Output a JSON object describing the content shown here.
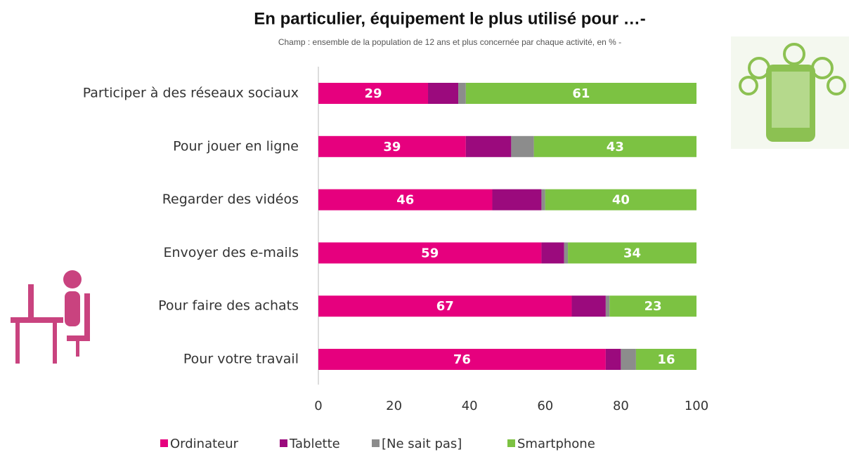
{
  "chart_data": {
    "type": "stacked-bar-horizontal",
    "title": "En particulier, équipement le plus utilisé pour …-",
    "subtitle": "Champ : ensemble de la population de 12 ans et plus concernée par chaque activité, en % -",
    "categories": [
      "Participer à des réseaux sociaux",
      "Pour jouer en ligne",
      "Regarder des vidéos",
      "Envoyer des e-mails",
      "Pour faire des achats",
      "Pour votre travail"
    ],
    "series": [
      {
        "name": "Ordinateur",
        "color": "#e6007e",
        "labels": true,
        "values": [
          29,
          39,
          46,
          59,
          67,
          76
        ]
      },
      {
        "name": "Tablette",
        "color": "#9b0a7d",
        "labels": false,
        "values": [
          8,
          12,
          13,
          6,
          9,
          4
        ]
      },
      {
        "name": "[Ne sait pas]",
        "color": "#8c8c8c",
        "labels": false,
        "values": [
          2,
          6,
          1,
          1,
          1,
          4
        ]
      },
      {
        "name": "Smartphone",
        "color": "#7cc242",
        "labels": true,
        "values": [
          61,
          43,
          40,
          34,
          23,
          16
        ]
      }
    ],
    "xlim": [
      0,
      100
    ],
    "xticks": [
      0,
      20,
      40,
      60,
      80,
      100
    ],
    "legend": "bottom"
  }
}
